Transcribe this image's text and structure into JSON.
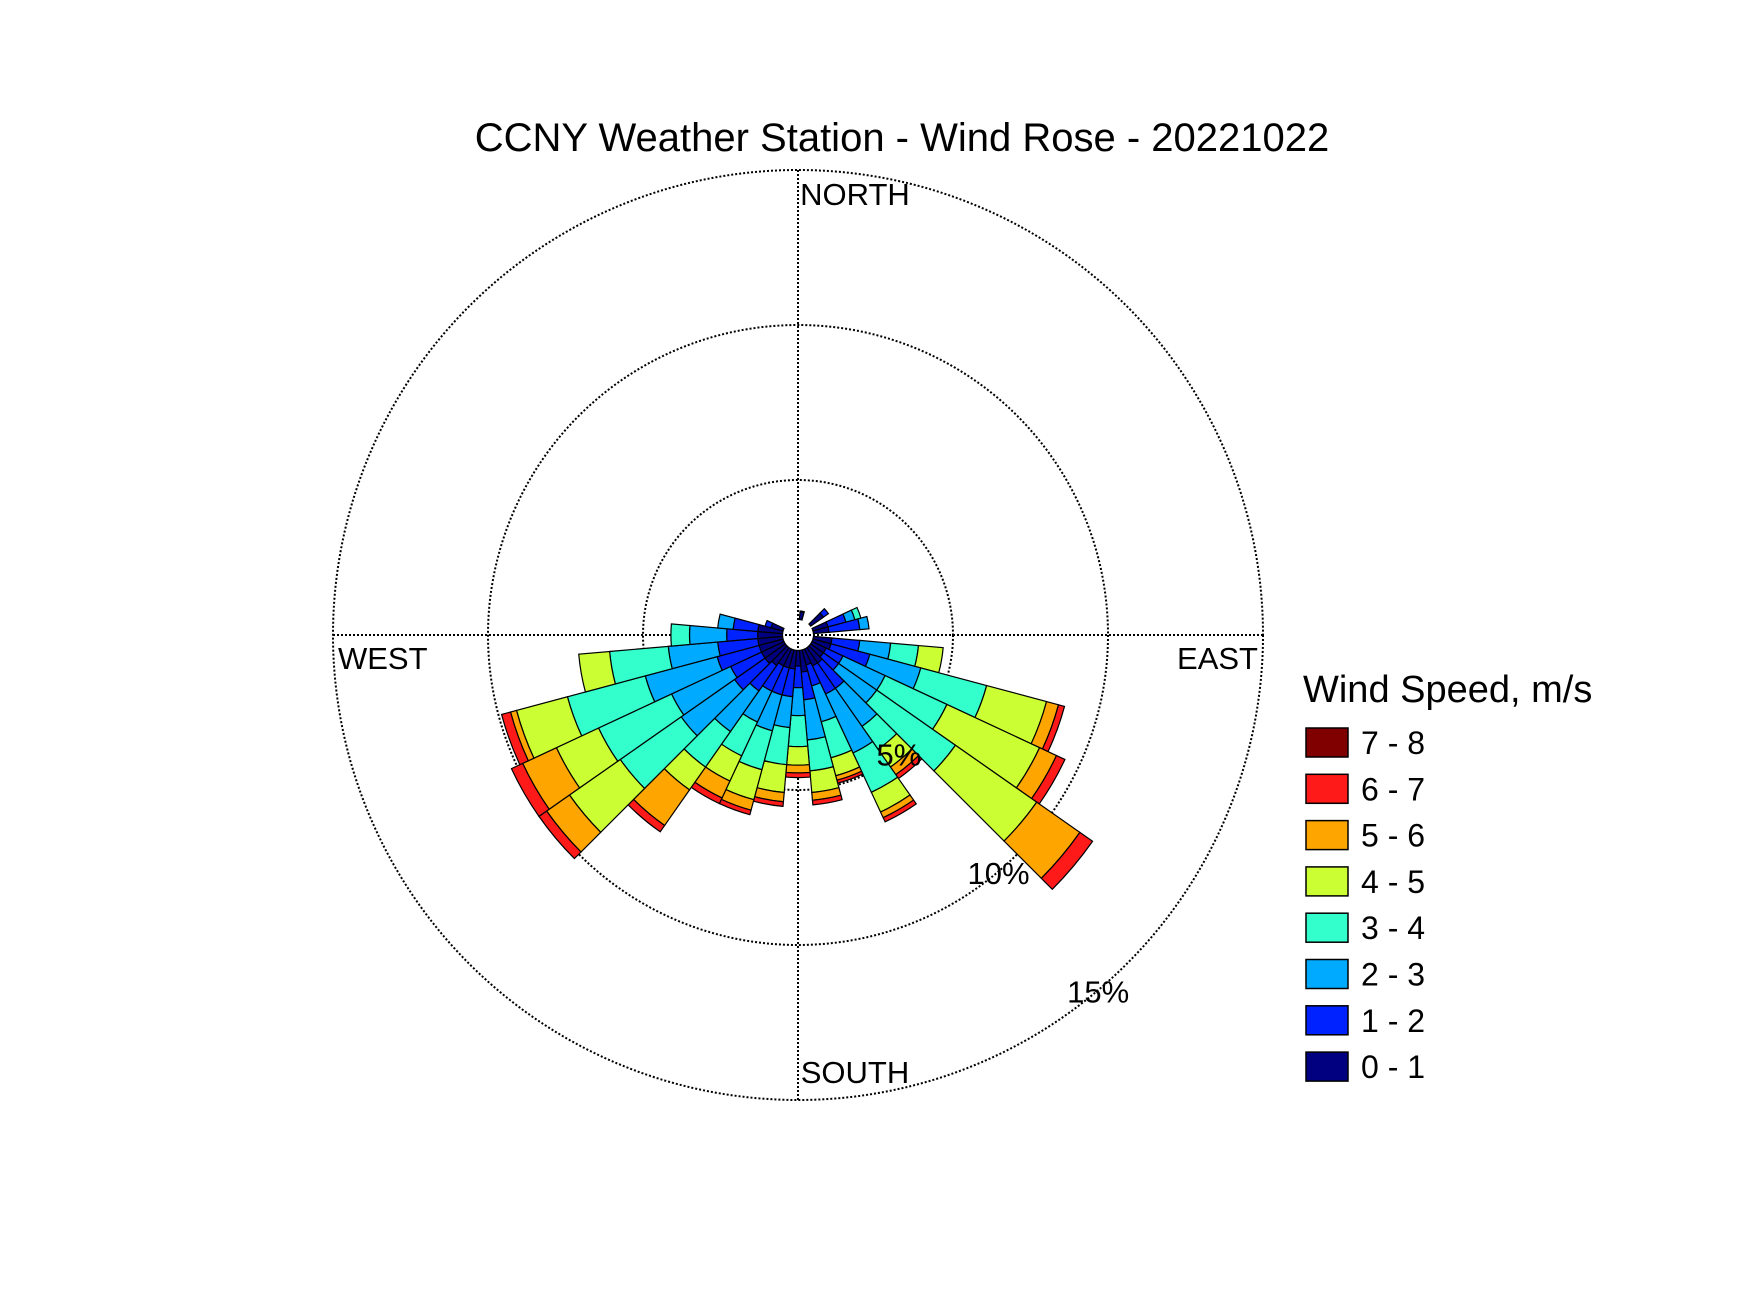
{
  "chart_data": {
    "type": "wind-rose",
    "title": "CCNY Weather Station - Wind Rose - 20221022",
    "direction_labels": {
      "north": "NORTH",
      "south": "SOUTH",
      "east": "EAST",
      "west": "WEST"
    },
    "radial_axis": {
      "unit": "%",
      "max": 15,
      "rings": [
        5,
        10,
        15
      ],
      "ring_labels": [
        "5%",
        "10%",
        "15%"
      ],
      "grid": true,
      "dashed": true
    },
    "legend": {
      "title": "Wind Speed, m/s",
      "placement": "right",
      "items": [
        {
          "label": "7 - 8",
          "color": "#800000"
        },
        {
          "label": "6 - 7",
          "color": "#ff1a1a"
        },
        {
          "label": "5 - 6",
          "color": "#ffa500"
        },
        {
          "label": "4 - 5",
          "color": "#ccff33"
        },
        {
          "label": "3 - 4",
          "color": "#33ffcc"
        },
        {
          "label": "2 - 3",
          "color": "#00aaff"
        },
        {
          "label": "1 - 2",
          "color": "#0022ff"
        },
        {
          "label": "0 - 1",
          "color": "#000080"
        }
      ]
    },
    "sector_width_deg": 10,
    "calm_hole_percent": 0.5,
    "bin_order": [
      "0 - 1",
      "1 - 2",
      "2 - 3",
      "3 - 4",
      "4 - 5",
      "5 - 6",
      "6 - 7",
      "7 - 8"
    ],
    "sectors": [
      {
        "direction": 10,
        "values": [
          0.25,
          0.03,
          0,
          0,
          0,
          0,
          0,
          0
        ]
      },
      {
        "direction": 50,
        "values": [
          0.5,
          0.2,
          0,
          0,
          0,
          0,
          0,
          0
        ]
      },
      {
        "direction": 70,
        "values": [
          0.5,
          0.6,
          0.3,
          0.2,
          0,
          0,
          0,
          0
        ]
      },
      {
        "direction": 80,
        "values": [
          0.5,
          1.0,
          0.3,
          0,
          0,
          0,
          0,
          0
        ]
      },
      {
        "direction": 100,
        "values": [
          0.6,
          0.9,
          1.0,
          0.9,
          0.8,
          0,
          0,
          0
        ]
      },
      {
        "direction": 110,
        "values": [
          0.6,
          1.3,
          1.7,
          2.2,
          2.0,
          0.4,
          0.2,
          0
        ]
      },
      {
        "direction": 120,
        "values": [
          0.5,
          0.6,
          1.5,
          2.2,
          3.3,
          0.6,
          0.3,
          0
        ]
      },
      {
        "direction": 130,
        "values": [
          0.5,
          0.6,
          1.5,
          3.1,
          3.2,
          1.7,
          0.5,
          0
        ]
      },
      {
        "direction": 140,
        "values": [
          0.6,
          1.0,
          1.5,
          0.9,
          0.7,
          0.3,
          0.15,
          0
        ]
      },
      {
        "direction": 150,
        "values": [
          0.6,
          1.0,
          2.1,
          1.4,
          0.7,
          0.2,
          0.15,
          0
        ]
      },
      {
        "direction": 160,
        "values": [
          0.5,
          0.7,
          1.2,
          1.2,
          0.6,
          0.15,
          0.1,
          0
        ]
      },
      {
        "direction": 170,
        "values": [
          0.7,
          0.9,
          1.3,
          1.0,
          0.7,
          0.25,
          0.15,
          0
        ]
      },
      {
        "direction": 180,
        "values": [
          0.5,
          0.7,
          0.9,
          1.0,
          0.6,
          0.25,
          0.15,
          0
        ]
      },
      {
        "direction": 190,
        "values": [
          0.6,
          0.9,
          1.0,
          1.2,
          0.9,
          0.3,
          0.15,
          0
        ]
      },
      {
        "direction": 200,
        "values": [
          0.6,
          0.9,
          1.2,
          1.3,
          1.0,
          0.35,
          0.15,
          0
        ]
      },
      {
        "direction": 210,
        "values": [
          0.6,
          0.9,
          1.1,
          1.2,
          0.9,
          0.6,
          0.2,
          0
        ]
      },
      {
        "direction": 220,
        "values": [
          0.7,
          1.0,
          1.6,
          1.4,
          0.9,
          1.4,
          0.25,
          0
        ]
      },
      {
        "direction": 230,
        "values": [
          0.8,
          1.2,
          2.1,
          2.4,
          2.0,
          0.9,
          0.3,
          0
        ]
      },
      {
        "direction": 240,
        "values": [
          0.8,
          1.1,
          2.1,
          2.6,
          1.5,
          1.2,
          0.4,
          0
        ]
      },
      {
        "direction": 250,
        "values": [
          0.8,
          1.4,
          2.4,
          2.6,
          1.7,
          0.2,
          0.3,
          0
        ]
      },
      {
        "direction": 260,
        "values": [
          0.8,
          1.3,
          1.6,
          1.9,
          1.0,
          0,
          0,
          0
        ]
      },
      {
        "direction": 270,
        "values": [
          0.8,
          1.0,
          1.2,
          0.6,
          0,
          0,
          0,
          0
        ]
      },
      {
        "direction": 280,
        "values": [
          0.8,
          0.8,
          0.5,
          0,
          0,
          0,
          0,
          0
        ]
      },
      {
        "direction": 290,
        "values": [
          0.4,
          0.2,
          0,
          0,
          0,
          0,
          0,
          0
        ]
      }
    ]
  }
}
